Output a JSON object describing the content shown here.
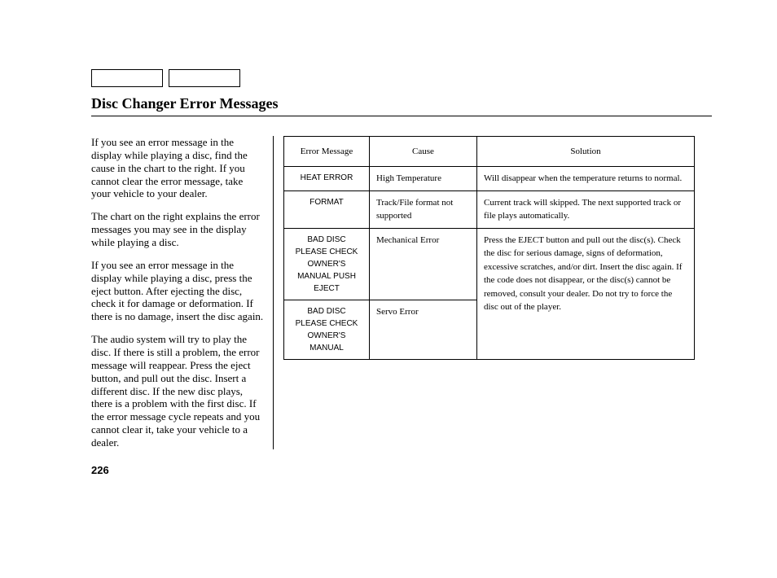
{
  "title": "Disc Changer Error Messages",
  "page_number": "226",
  "paragraphs": [
    "If you see an error message in the display while playing a disc, find the cause in the chart to the right. If you cannot clear the error message, take your vehicle to your dealer.",
    "The chart on the right explains the error messages you may see in the display while playing a disc.",
    "If you see an error message in the display while playing a disc, press the eject button. After ejecting the disc, check it for damage or deformation. If there is no damage, insert the disc again.",
    "The audio system will try to play the disc. If there is still a problem, the error message will reappear. Press the eject button, and pull out the disc. Insert a different disc. If the new disc plays, there is a problem with the first disc. If the error message cycle repeats and you cannot clear it, take your vehicle to a dealer."
  ],
  "table": {
    "headers": [
      "Error Message",
      "Cause",
      "Solution"
    ],
    "rows": [
      {
        "msg": "HEAT ERROR",
        "cause": "High Temperature",
        "solution": "Will disappear when the temperature returns to normal."
      },
      {
        "msg": "FORMAT",
        "cause": "Track/File format not supported",
        "solution": "Current track will skipped. The next supported track or file plays automatically."
      },
      {
        "msg": "BAD DISC PLEASE CHECK OWNER'S MANUAL PUSH EJECT",
        "cause": "Mechanical Error",
        "merged_solution": "Press the EJECT button and pull out the disc(s). Check the disc for serious damage, signs of deformation, excessive scratches, and/or dirt. Insert the disc again. If the code does not disappear, or the disc(s) cannot be removed, consult your dealer. Do not try to force the disc out of the player."
      },
      {
        "msg": "BAD DISC PLEASE CHECK OWNER'S MANUAL",
        "cause": "Servo Error"
      }
    ]
  }
}
